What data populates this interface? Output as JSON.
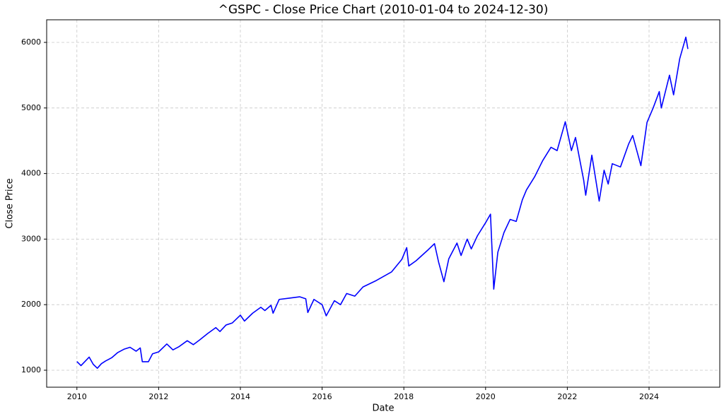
{
  "chart_data": {
    "type": "line",
    "title": "^GSPC - Close Price Chart (2010-01-04 to 2024-12-30)",
    "x_label": "Date",
    "y_label": "Close Price",
    "x": [
      2010.0,
      2010.1,
      2010.3,
      2010.4,
      2010.5,
      2010.6,
      2010.7,
      2010.85,
      2011.0,
      2011.15,
      2011.3,
      2011.45,
      2011.55,
      2011.6,
      2011.75,
      2011.85,
      2012.0,
      2012.2,
      2012.35,
      2012.5,
      2012.7,
      2012.85,
      2013.0,
      2013.2,
      2013.4,
      2013.5,
      2013.65,
      2013.8,
      2014.0,
      2014.1,
      2014.3,
      2014.5,
      2014.6,
      2014.75,
      2014.8,
      2014.95,
      2015.2,
      2015.45,
      2015.6,
      2015.65,
      2015.8,
      2016.0,
      2016.1,
      2016.3,
      2016.45,
      2016.6,
      2016.8,
      2017.0,
      2017.3,
      2017.5,
      2017.7,
      2017.95,
      2018.07,
      2018.12,
      2018.3,
      2018.6,
      2018.75,
      2018.85,
      2018.98,
      2019.1,
      2019.3,
      2019.4,
      2019.55,
      2019.65,
      2019.8,
      2020.0,
      2020.12,
      2020.2,
      2020.3,
      2020.45,
      2020.6,
      2020.75,
      2020.9,
      2021.0,
      2021.2,
      2021.4,
      2021.6,
      2021.75,
      2021.95,
      2022.1,
      2022.2,
      2022.4,
      2022.45,
      2022.6,
      2022.78,
      2022.9,
      2023.0,
      2023.1,
      2023.3,
      2023.5,
      2023.6,
      2023.8,
      2023.95,
      2024.1,
      2024.25,
      2024.3,
      2024.5,
      2024.6,
      2024.75,
      2024.9,
      2024.95
    ],
    "series": [
      {
        "name": "Close Price",
        "color": "#0000ff",
        "values": [
          1133,
          1070,
          1200,
          1090,
          1030,
          1100,
          1140,
          1190,
          1270,
          1320,
          1350,
          1290,
          1340,
          1130,
          1130,
          1250,
          1280,
          1400,
          1310,
          1360,
          1450,
          1390,
          1460,
          1560,
          1650,
          1590,
          1690,
          1720,
          1840,
          1750,
          1870,
          1960,
          1910,
          1990,
          1870,
          2080,
          2100,
          2120,
          2090,
          1880,
          2080,
          2000,
          1830,
          2060,
          2000,
          2170,
          2130,
          2270,
          2360,
          2430,
          2500,
          2690,
          2870,
          2590,
          2670,
          2840,
          2930,
          2650,
          2350,
          2700,
          2940,
          2750,
          3000,
          2850,
          3050,
          3250,
          3380,
          2237,
          2800,
          3100,
          3300,
          3270,
          3600,
          3750,
          3950,
          4200,
          4400,
          4350,
          4790,
          4350,
          4550,
          3900,
          3670,
          4280,
          3580,
          4050,
          3840,
          4150,
          4100,
          4450,
          4580,
          4120,
          4780,
          5000,
          5250,
          5000,
          5500,
          5200,
          5750,
          6080,
          5900
        ]
      }
    ],
    "xlim": [
      2009.26,
      2025.73
    ],
    "xticks": [
      2010,
      2012,
      2014,
      2016,
      2018,
      2020,
      2022,
      2024
    ],
    "ylim": [
      741,
      6345
    ],
    "yticks": [
      1000,
      2000,
      3000,
      4000,
      5000,
      6000
    ],
    "grid": true
  }
}
